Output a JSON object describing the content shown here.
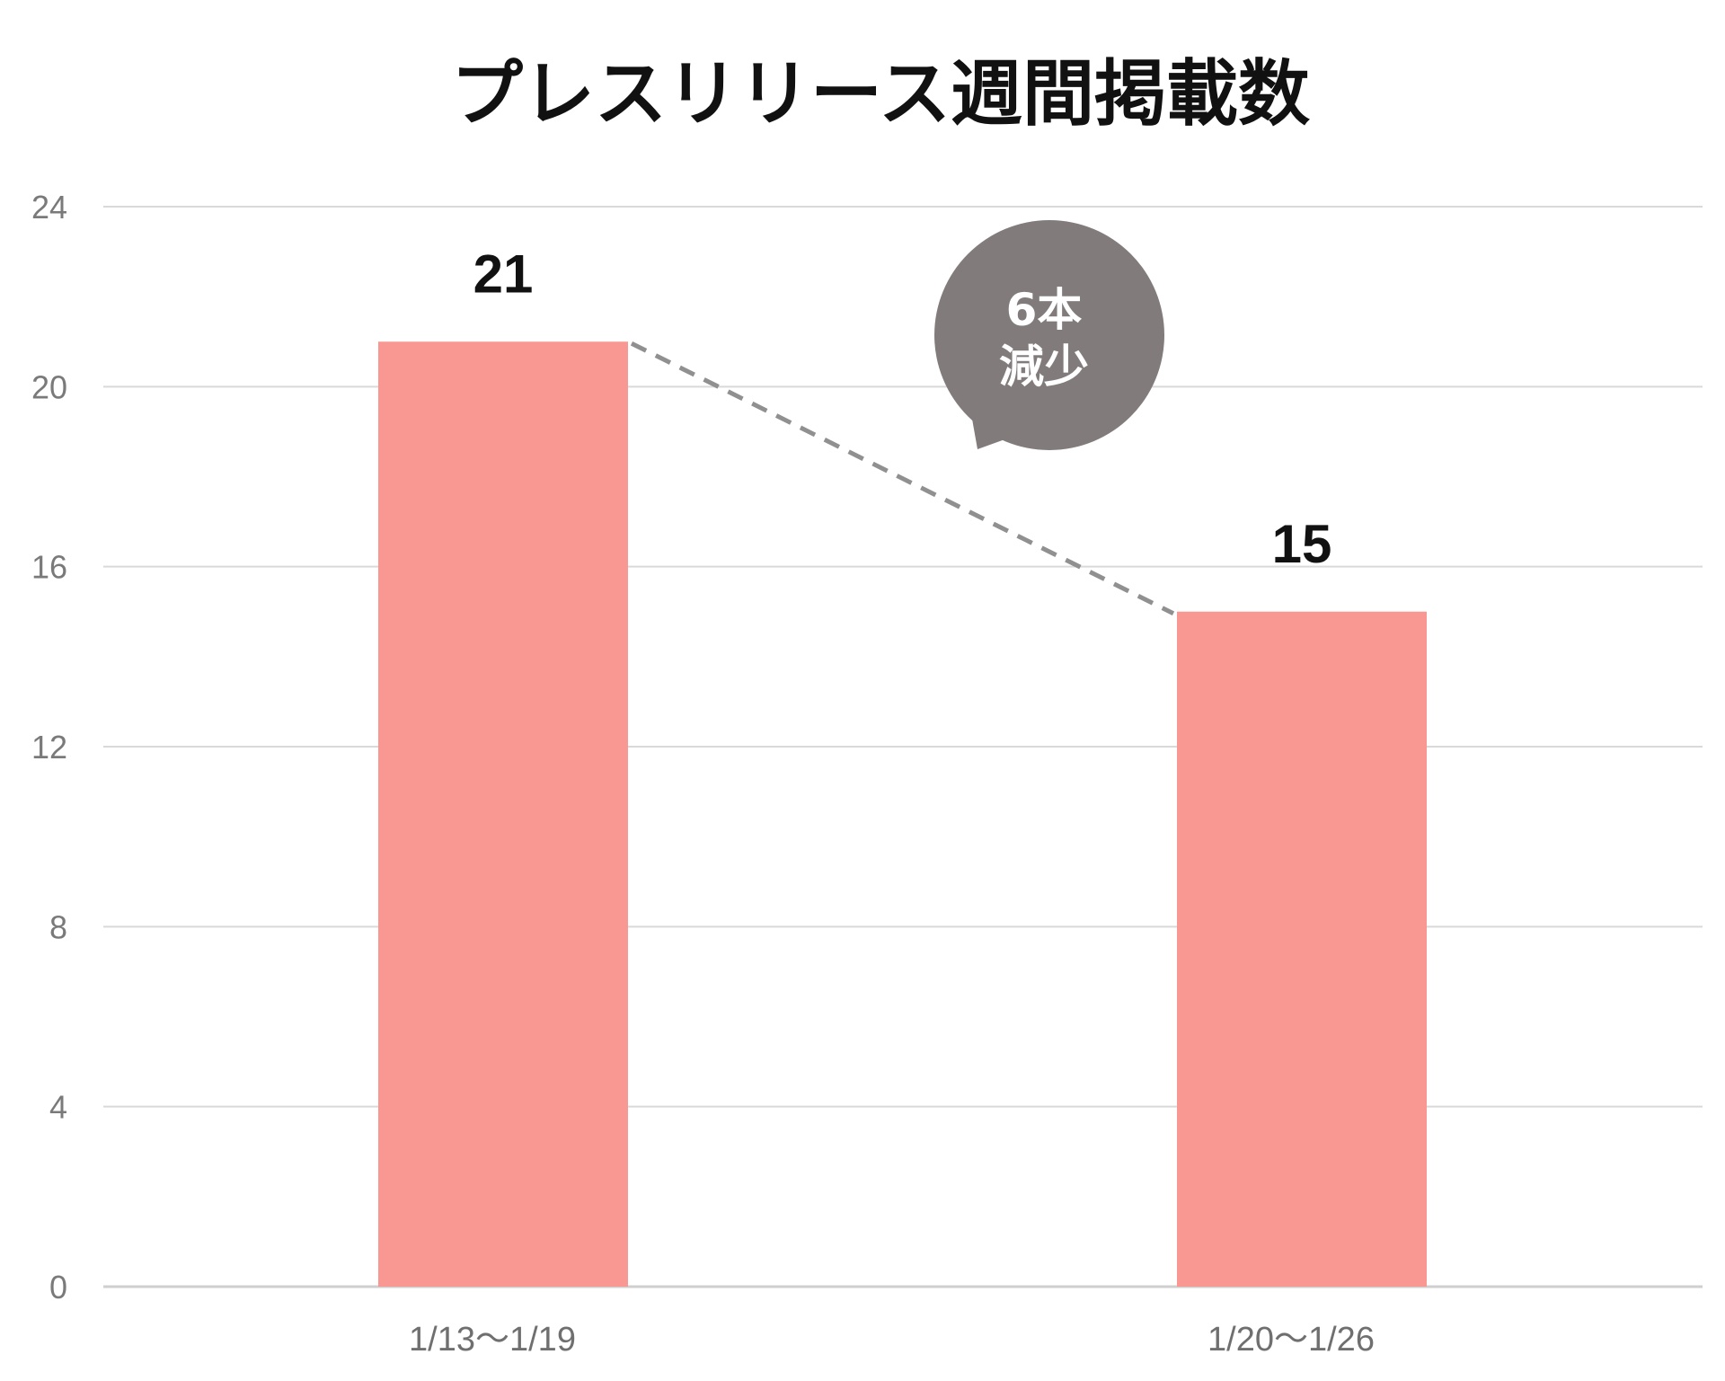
{
  "chart_data": {
    "type": "bar",
    "title": "プレスリリース週間掲載数",
    "xlabel": "",
    "ylabel": "",
    "categories": [
      "1/13〜1/19",
      "1/20〜1/26"
    ],
    "values": [
      21,
      15
    ],
    "ylim": [
      0,
      24
    ],
    "yticks": [
      "0",
      "4",
      "8",
      "12",
      "16",
      "20",
      "24"
    ],
    "data_labels": [
      "21",
      "15"
    ],
    "grid": true,
    "bar_color": "#f99893",
    "annotation": {
      "lines": [
        "6本",
        "減少"
      ],
      "color": "#827b7b"
    }
  }
}
